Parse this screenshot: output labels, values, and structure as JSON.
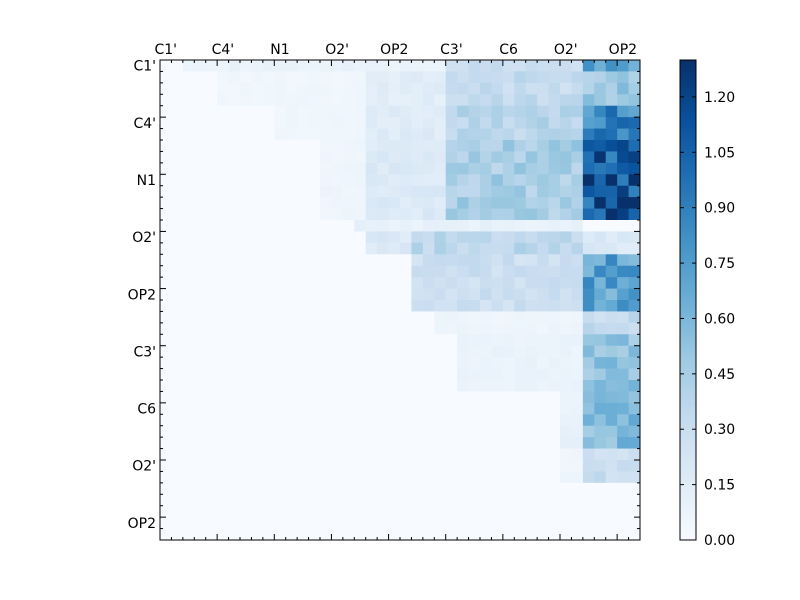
{
  "chart_data": {
    "type": "heatmap",
    "title": "",
    "xlabel": "",
    "ylabel": "",
    "x_tick_labels": [
      "C1'",
      "C4'",
      "N1",
      "O2'",
      "OP2",
      "C3'",
      "C6",
      "O2'",
      "OP2"
    ],
    "y_tick_labels": [
      "C1'",
      "C4'",
      "N1",
      "O2'",
      "OP2",
      "C3'",
      "C6",
      "O2'",
      "OP2"
    ],
    "n_cells": 42,
    "color_scale": {
      "min": 0.0,
      "max": 1.3,
      "ticks": [
        "0.00",
        "0.15",
        "0.30",
        "0.45",
        "0.60",
        "0.75",
        "0.90",
        "1.05",
        "1.20"
      ],
      "colormap": "Blues",
      "low_color": "#f7fbff",
      "high_color": "#08306b"
    },
    "regions": [
      {
        "rows": [
          0,
          1
        ],
        "cols": [
          2,
          25
        ],
        "value": 0.08
      },
      {
        "rows": [
          0,
          1
        ],
        "cols": [
          25,
          37
        ],
        "value": 0.28
      },
      {
        "rows": [
          0,
          1
        ],
        "cols": [
          37,
          42
        ],
        "value": 0.72
      },
      {
        "rows": [
          1,
          4
        ],
        "cols": [
          5,
          19
        ],
        "value": 0.05
      },
      {
        "rows": [
          1,
          4
        ],
        "cols": [
          18,
          25
        ],
        "value": 0.14
      },
      {
        "rows": [
          1,
          4
        ],
        "cols": [
          25,
          37
        ],
        "value": 0.32
      },
      {
        "rows": [
          1,
          4
        ],
        "cols": [
          37,
          42
        ],
        "value": 0.48
      },
      {
        "rows": [
          4,
          7
        ],
        "cols": [
          10,
          18
        ],
        "value": 0.05
      },
      {
        "rows": [
          4,
          7
        ],
        "cols": [
          18,
          25
        ],
        "value": 0.16
      },
      {
        "rows": [
          4,
          7
        ],
        "cols": [
          25,
          37
        ],
        "value": 0.38
      },
      {
        "rows": [
          4,
          7
        ],
        "cols": [
          37,
          42
        ],
        "value": 0.85
      },
      {
        "rows": [
          7,
          14
        ],
        "cols": [
          14,
          18
        ],
        "value": 0.06
      },
      {
        "rows": [
          7,
          14
        ],
        "cols": [
          18,
          25
        ],
        "value": 0.18
      },
      {
        "rows": [
          7,
          14
        ],
        "cols": [
          25,
          37
        ],
        "value": 0.44
      },
      {
        "rows": [
          7,
          14
        ],
        "cols": [
          37,
          42
        ],
        "value": 1.08
      },
      {
        "rows": [
          12,
          13
        ],
        "cols": [
          38,
          42
        ],
        "value": 1.28
      },
      {
        "rows": [
          14,
          15
        ],
        "cols": [
          17,
          37
        ],
        "value": 0.1
      },
      {
        "rows": [
          15,
          17
        ],
        "cols": [
          18,
          22
        ],
        "value": 0.18
      },
      {
        "rows": [
          15,
          17
        ],
        "cols": [
          22,
          37
        ],
        "value": 0.36
      },
      {
        "rows": [
          15,
          17
        ],
        "cols": [
          37,
          42
        ],
        "value": 0.18
      },
      {
        "rows": [
          17,
          22
        ],
        "cols": [
          22,
          37
        ],
        "value": 0.28
      },
      {
        "rows": [
          17,
          22
        ],
        "cols": [
          37,
          42
        ],
        "value": 0.72
      },
      {
        "rows": [
          22,
          24
        ],
        "cols": [
          24,
          37
        ],
        "value": 0.06
      },
      {
        "rows": [
          22,
          24
        ],
        "cols": [
          37,
          42
        ],
        "value": 0.32
      },
      {
        "rows": [
          24,
          29
        ],
        "cols": [
          26,
          37
        ],
        "value": 0.08
      },
      {
        "rows": [
          24,
          29
        ],
        "cols": [
          37,
          42
        ],
        "value": 0.52
      },
      {
        "rows": [
          29,
          34
        ],
        "cols": [
          35,
          37
        ],
        "value": 0.1
      },
      {
        "rows": [
          29,
          34
        ],
        "cols": [
          37,
          42
        ],
        "value": 0.58
      },
      {
        "rows": [
          34,
          37
        ],
        "cols": [
          35,
          37
        ],
        "value": 0.06
      },
      {
        "rows": [
          34,
          37
        ],
        "cols": [
          37,
          42
        ],
        "value": 0.3
      }
    ]
  }
}
